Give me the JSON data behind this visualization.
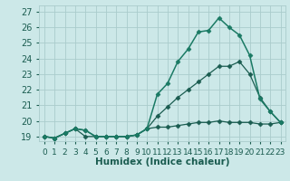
{
  "title": "",
  "xlabel": "Humidex (Indice chaleur)",
  "bg_color": "#cce8e8",
  "grid_color": "#aacccc",
  "line_color_dark": "#1a5c50",
  "line_color_mid": "#1a7a64",
  "xlim_min": -0.5,
  "xlim_max": 23.5,
  "ylim_min": 18.7,
  "ylim_max": 27.4,
  "xticks": [
    0,
    1,
    2,
    3,
    4,
    5,
    6,
    7,
    8,
    9,
    10,
    11,
    12,
    13,
    14,
    15,
    16,
    17,
    18,
    19,
    20,
    21,
    22,
    23
  ],
  "yticks": [
    19,
    20,
    21,
    22,
    23,
    24,
    25,
    26,
    27
  ],
  "series1_x": [
    0,
    1,
    2,
    3,
    4,
    5,
    6,
    7,
    8,
    9,
    10,
    11,
    12,
    13,
    14,
    15,
    16,
    17,
    18,
    19,
    20,
    21,
    22,
    23
  ],
  "series1_y": [
    19.0,
    18.9,
    19.2,
    19.5,
    19.4,
    19.0,
    19.0,
    19.0,
    19.0,
    19.1,
    19.5,
    21.7,
    22.4,
    23.8,
    24.6,
    25.7,
    25.8,
    26.6,
    26.0,
    25.5,
    24.2,
    21.4,
    20.6,
    19.9
  ],
  "series2_x": [
    0,
    1,
    2,
    3,
    4,
    5,
    6,
    7,
    8,
    9,
    10,
    11,
    12,
    13,
    14,
    15,
    16,
    17,
    18,
    19,
    20,
    21,
    22,
    23
  ],
  "series2_y": [
    19.0,
    18.9,
    19.2,
    19.5,
    19.4,
    19.0,
    19.0,
    19.0,
    19.0,
    19.1,
    19.5,
    20.3,
    20.9,
    21.5,
    22.0,
    22.5,
    23.0,
    23.5,
    23.5,
    23.8,
    23.0,
    21.5,
    20.6,
    19.9
  ],
  "series3_x": [
    0,
    1,
    2,
    3,
    4,
    5,
    6,
    7,
    8,
    9,
    10,
    11,
    12,
    13,
    14,
    15,
    16,
    17,
    18,
    19,
    20,
    21,
    22,
    23
  ],
  "series3_y": [
    19.0,
    18.9,
    19.2,
    19.5,
    19.0,
    19.0,
    19.0,
    19.0,
    19.0,
    19.1,
    19.5,
    19.6,
    19.6,
    19.7,
    19.8,
    19.9,
    19.9,
    20.0,
    19.9,
    19.9,
    19.9,
    19.8,
    19.8,
    19.9
  ],
  "tick_fontsize": 7,
  "xlabel_fontsize": 7.5,
  "xlabel_color": "#1a5c50",
  "tick_color": "#1a5c50"
}
